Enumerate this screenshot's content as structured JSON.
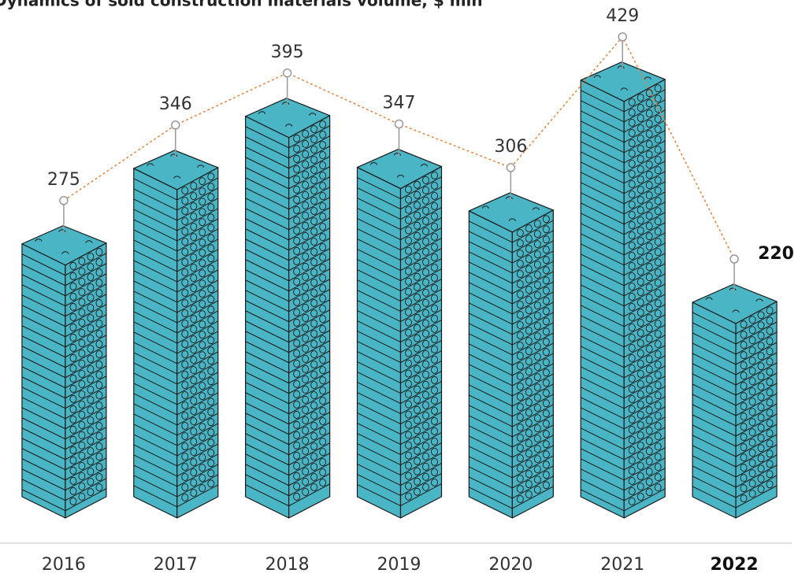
{
  "chart_data": {
    "type": "bar",
    "title": "Dynamics of sold construction materials volume, $ mln",
    "categories": [
      "2016",
      "2017",
      "2018",
      "2019",
      "2020",
      "2021",
      "2022"
    ],
    "values": [
      275,
      346,
      395,
      347,
      306,
      429,
      220
    ],
    "color": "#4ab5c4",
    "line_color": "#e8833a"
  }
}
